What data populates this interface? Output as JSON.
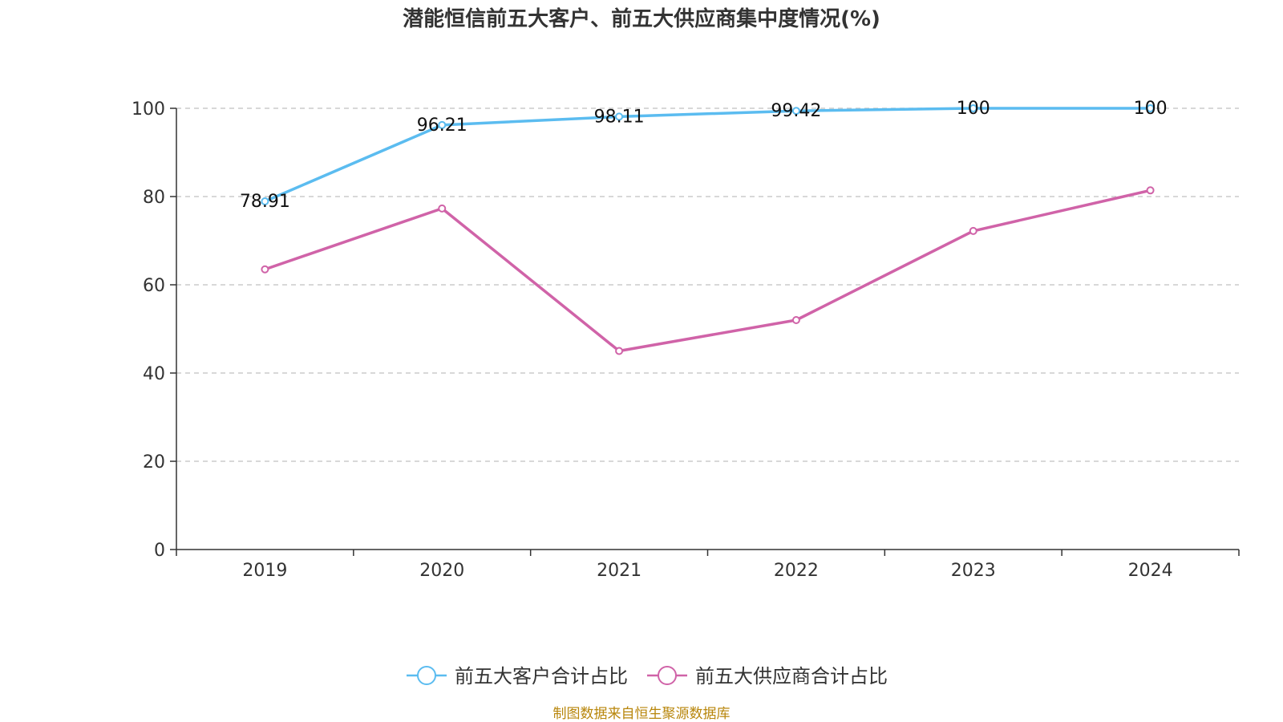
{
  "chart_data": {
    "type": "line",
    "title": "潜能恒信前五大客户、前五大供应商集中度情况(%)",
    "categories": [
      "2019",
      "2020",
      "2021",
      "2022",
      "2023",
      "2024"
    ],
    "y_ticks": [
      "0",
      "20",
      "40",
      "60",
      "80",
      "100"
    ],
    "ylim": [
      0,
      100
    ],
    "grid": true,
    "legend_position": "bottom",
    "series": [
      {
        "name": "前五大客户合计占比",
        "color": "#5bbcf0",
        "values": [
          78.91,
          96.21,
          98.11,
          99.42,
          100,
          100
        ],
        "labels": [
          "78.91",
          "96.21",
          "98.11",
          "99.42",
          "100",
          "100"
        ],
        "show_labels": true
      },
      {
        "name": "前五大供应商合计占比",
        "color": "#d063a8",
        "values": [
          63.5,
          77.3,
          45.0,
          52.0,
          72.2,
          81.4
        ],
        "show_labels": false
      }
    ]
  },
  "footer": {
    "source": "制图数据来自恒生聚源数据库"
  }
}
